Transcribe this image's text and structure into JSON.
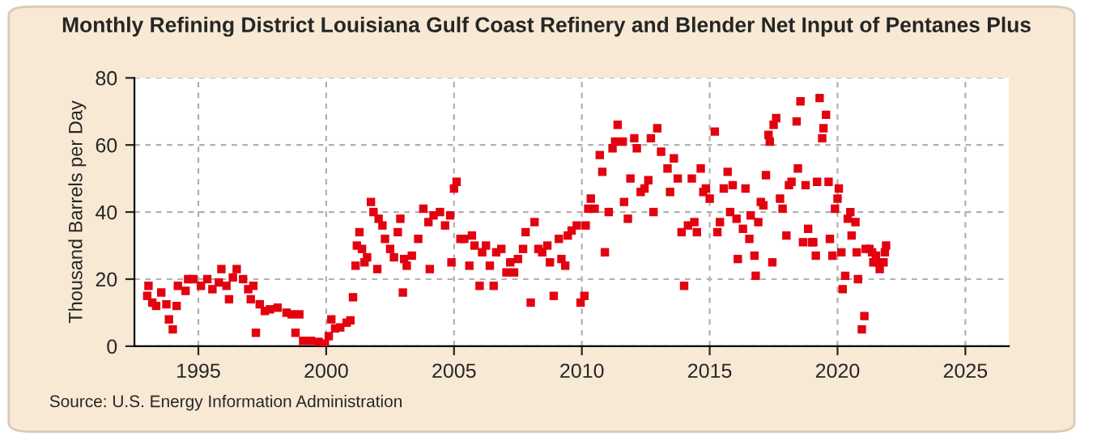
{
  "chart_data": {
    "type": "scatter",
    "title": "Monthly Refining District Louisiana Gulf Coast Refinery and Blender Net Input of Pentanes Plus",
    "ylabel": "Thousand Barrels per Day",
    "annotations": [
      "Source: U.S. Energy Information Administration"
    ],
    "xlim": [
      1992.5,
      2026.7
    ],
    "xticks": [
      1995,
      2000,
      2005,
      2010,
      2015,
      2020,
      2025
    ],
    "ylim": [
      0,
      80
    ],
    "yticks": [
      0,
      20,
      40,
      60,
      80
    ],
    "grid": true,
    "marker": "square",
    "series": [
      {
        "color": "#e3000f",
        "x": [
          1993.0,
          1993.05,
          1993.2,
          1993.35,
          1993.55,
          1993.75,
          1993.85,
          1994.0,
          1994.15,
          1994.2,
          1994.5,
          1994.6,
          1994.8,
          1995.1,
          1995.35,
          1995.55,
          1995.8,
          1995.9,
          1996.1,
          1996.2,
          1996.35,
          1996.5,
          1996.75,
          1996.95,
          1997.05,
          1997.15,
          1997.25,
          1997.4,
          1997.6,
          1997.8,
          1998.1,
          1998.45,
          1998.65,
          1998.8,
          1998.95,
          1999.1,
          1999.4,
          1999.7,
          1999.95,
          2000.1,
          2000.2,
          2000.35,
          2000.55,
          2000.8,
          2000.95,
          2001.05,
          2001.15,
          2001.2,
          2001.3,
          2001.4,
          2001.5,
          2001.6,
          2001.75,
          2001.85,
          2002.0,
          2002.05,
          2002.2,
          2002.3,
          2002.5,
          2002.65,
          2002.8,
          2002.9,
          2003.0,
          2003.05,
          2003.15,
          2003.35,
          2003.6,
          2003.8,
          2004.0,
          2004.05,
          2004.2,
          2004.45,
          2004.65,
          2004.85,
          2004.9,
          2005.0,
          2005.1,
          2005.25,
          2005.4,
          2005.6,
          2005.7,
          2005.8,
          2006.0,
          2006.1,
          2006.25,
          2006.4,
          2006.55,
          2006.65,
          2006.85,
          2007.05,
          2007.2,
          2007.35,
          2007.5,
          2007.7,
          2007.8,
          2008.0,
          2008.15,
          2008.3,
          2008.45,
          2008.65,
          2008.75,
          2008.9,
          2009.1,
          2009.2,
          2009.35,
          2009.45,
          2009.6,
          2009.8,
          2009.95,
          2010.1,
          2010.15,
          2010.25,
          2010.35,
          2010.5,
          2010.7,
          2010.8,
          2010.9,
          2011.05,
          2011.2,
          2011.3,
          2011.4,
          2011.6,
          2011.65,
          2011.8,
          2011.9,
          2012.05,
          2012.15,
          2012.3,
          2012.45,
          2012.6,
          2012.7,
          2012.8,
          2012.95,
          2013.1,
          2013.35,
          2013.45,
          2013.6,
          2013.75,
          2013.9,
          2014.0,
          2014.15,
          2014.3,
          2014.4,
          2014.5,
          2014.65,
          2014.75,
          2014.85,
          2015.0,
          2015.2,
          2015.3,
          2015.4,
          2015.55,
          2015.7,
          2015.8,
          2015.9,
          2016.05,
          2016.1,
          2016.3,
          2016.4,
          2016.55,
          2016.6,
          2016.75,
          2016.8,
          2016.9,
          2017.0,
          2017.1,
          2017.2,
          2017.3,
          2017.35,
          2017.45,
          2017.5,
          2017.6,
          2017.75,
          2017.85,
          2018.0,
          2018.1,
          2018.2,
          2018.4,
          2018.45,
          2018.55,
          2018.65,
          2018.75,
          2018.85,
          2019.0,
          2019.05,
          2019.15,
          2019.2,
          2019.3,
          2019.4,
          2019.45,
          2019.55,
          2019.65,
          2019.7,
          2019.8,
          2019.9,
          2020.0,
          2020.05,
          2020.15,
          2020.2,
          2020.3,
          2020.4,
          2020.5,
          2020.55,
          2020.7,
          2020.75,
          2020.8,
          2020.95,
          2021.05,
          2021.1,
          2021.25,
          2021.35,
          2021.4,
          2021.5,
          2021.6,
          2021.65,
          2021.8,
          2021.85,
          2021.9
        ],
        "values": [
          15,
          18,
          13,
          12,
          16,
          12.5,
          8,
          5,
          12,
          18,
          16.5,
          20,
          20,
          18,
          20,
          17,
          19,
          23,
          18,
          14,
          20.5,
          23,
          20,
          17,
          14,
          18,
          4,
          12.5,
          10.5,
          11,
          11.5,
          10,
          9.5,
          4,
          9.5,
          1.6,
          1.6,
          1.3,
          0.8,
          3,
          8,
          5.3,
          5.6,
          7,
          7.7,
          14.6,
          24,
          30,
          34,
          29,
          25,
          26.5,
          43,
          40,
          23,
          38,
          36,
          32,
          29,
          26.5,
          34,
          38,
          16,
          26,
          24,
          27,
          32,
          41,
          37,
          23,
          39,
          40,
          36,
          39,
          25,
          47,
          49,
          32,
          32,
          24,
          33,
          30,
          18,
          28,
          30,
          24,
          18,
          28,
          29,
          22,
          25,
          22,
          26,
          29,
          34,
          13,
          37,
          29,
          28,
          30,
          25,
          15,
          32,
          26,
          24,
          33,
          34.5,
          36,
          13,
          15,
          36,
          41,
          44,
          41,
          57,
          52,
          28,
          40,
          59,
          61,
          66,
          61,
          43,
          38,
          50,
          62,
          59,
          46,
          47,
          49.5,
          62,
          40,
          65,
          58,
          53,
          46,
          56,
          50,
          34,
          18,
          36,
          50,
          37,
          34,
          53,
          46,
          47,
          44,
          64,
          34,
          37,
          47,
          52,
          40,
          48,
          38,
          26,
          35,
          47,
          32,
          39,
          27,
          21,
          37,
          43,
          42,
          51,
          63,
          61,
          25,
          66,
          68,
          44,
          41,
          33,
          48,
          49,
          67,
          53,
          73,
          31,
          48,
          35,
          31,
          31,
          27,
          49,
          74,
          62,
          65,
          69,
          49,
          32,
          27,
          41,
          44,
          47,
          28,
          17,
          21,
          38,
          40,
          33,
          37,
          28,
          20,
          5,
          9,
          29,
          29,
          28,
          25,
          27,
          25,
          23,
          25,
          28,
          30
        ]
      }
    ]
  }
}
